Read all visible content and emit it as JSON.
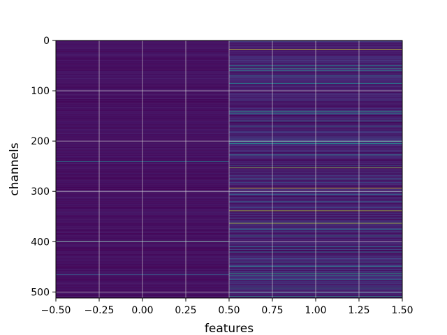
{
  "chart_data": {
    "type": "heatmap",
    "title": "",
    "xlabel": "features",
    "ylabel": "channels",
    "xlim": [
      -0.5,
      1.5
    ],
    "ylim": [
      512,
      0
    ],
    "y_inverted": true,
    "grid": true,
    "colormap": "viridis",
    "n_channels": 512,
    "n_features": 2,
    "x_ticks": [
      {
        "value": -0.5,
        "label": "−0.50"
      },
      {
        "value": -0.25,
        "label": "−0.25"
      },
      {
        "value": 0.0,
        "label": "0.00"
      },
      {
        "value": 0.25,
        "label": "0.25"
      },
      {
        "value": 0.5,
        "label": "0.50"
      },
      {
        "value": 0.75,
        "label": "0.75"
      },
      {
        "value": 1.0,
        "label": "1.00"
      },
      {
        "value": 1.25,
        "label": "1.25"
      },
      {
        "value": 1.5,
        "label": "1.50"
      }
    ],
    "y_ticks": [
      {
        "value": 0,
        "label": "0"
      },
      {
        "value": 100,
        "label": "100"
      },
      {
        "value": 200,
        "label": "200"
      },
      {
        "value": 300,
        "label": "300"
      },
      {
        "value": 400,
        "label": "400"
      },
      {
        "value": 500,
        "label": "500"
      }
    ],
    "feature_0_highlights": [
      {
        "channel": 240,
        "value": 0.4
      },
      {
        "channel": 399,
        "value": 0.55
      },
      {
        "channel": 465,
        "value": 0.3
      }
    ],
    "feature_1_highlights": [
      {
        "channel": 17,
        "value": 0.95
      },
      {
        "channel": 49,
        "value": 0.5
      },
      {
        "channel": 55,
        "value": 0.6
      },
      {
        "channel": 60,
        "value": 0.55
      },
      {
        "channel": 70,
        "value": 0.4
      },
      {
        "channel": 85,
        "value": 0.45
      },
      {
        "channel": 140,
        "value": 0.55
      },
      {
        "channel": 144,
        "value": 0.5
      },
      {
        "channel": 160,
        "value": 0.35
      },
      {
        "channel": 170,
        "value": 0.4
      },
      {
        "channel": 200,
        "value": 0.6
      },
      {
        "channel": 204,
        "value": 0.5
      },
      {
        "channel": 227,
        "value": 0.45
      },
      {
        "channel": 248,
        "value": 0.35
      },
      {
        "channel": 253,
        "value": 0.85
      },
      {
        "channel": 275,
        "value": 0.4
      },
      {
        "channel": 293,
        "value": 0.95
      },
      {
        "channel": 305,
        "value": 0.35
      },
      {
        "channel": 320,
        "value": 0.4
      },
      {
        "channel": 338,
        "value": 0.9
      },
      {
        "channel": 363,
        "value": 0.9
      },
      {
        "channel": 375,
        "value": 0.4
      },
      {
        "channel": 388,
        "value": 0.45
      },
      {
        "channel": 410,
        "value": 0.35
      },
      {
        "channel": 420,
        "value": 0.4
      },
      {
        "channel": 440,
        "value": 0.4
      },
      {
        "channel": 448,
        "value": 0.5
      },
      {
        "channel": 462,
        "value": 0.6
      },
      {
        "channel": 467,
        "value": 0.5
      },
      {
        "channel": 475,
        "value": 0.35
      },
      {
        "channel": 492,
        "value": 0.45
      },
      {
        "channel": 500,
        "value": 0.4
      },
      {
        "channel": 508,
        "value": 0.55
      }
    ]
  }
}
